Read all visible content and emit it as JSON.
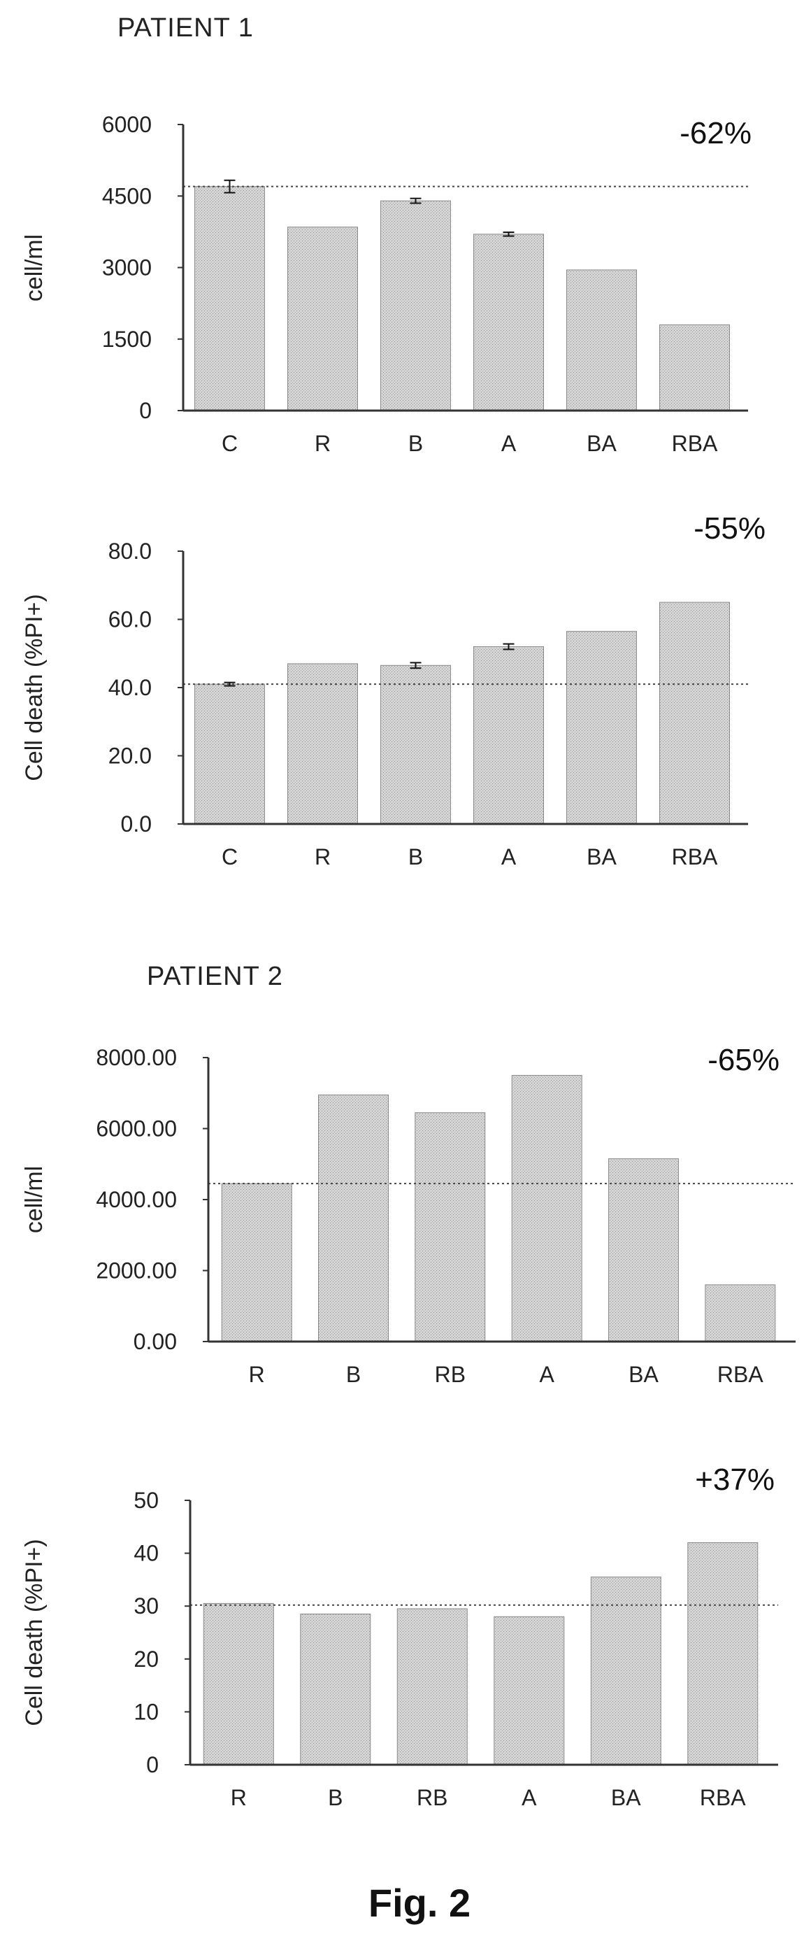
{
  "patient1_label": "PATIENT 1",
  "patient2_label": "PATIENT 2",
  "caption": "Fig. 2",
  "colors": {
    "bar_fill": "#cfcfcf",
    "bar_stroke": "#8a8a8a",
    "axis": "#333333",
    "reference_line": "#444444"
  },
  "chart_data": [
    {
      "type": "bar",
      "group": "PATIENT 1",
      "ylabel": "cell/ml",
      "categories": [
        "C",
        "R",
        "B",
        "A",
        "BA",
        "RBA"
      ],
      "values": [
        4700,
        3850,
        4400,
        3700,
        2950,
        1800
      ],
      "error_bars": [
        130,
        null,
        50,
        40,
        null,
        null
      ],
      "ylim": [
        0,
        6000
      ],
      "yticks": [
        "0",
        "1500",
        "3000",
        "4500",
        "6000"
      ],
      "reference_line": 4700,
      "annotation": "-62%"
    },
    {
      "type": "bar",
      "group": "PATIENT 1",
      "ylabel": "Cell death (%PI+)",
      "categories": [
        "C",
        "R",
        "B",
        "A",
        "BA",
        "RBA"
      ],
      "values": [
        41,
        47,
        46.5,
        52,
        56.5,
        65
      ],
      "error_bars": [
        0.5,
        null,
        0.8,
        0.8,
        null,
        null
      ],
      "ylim": [
        0,
        80
      ],
      "yticks": [
        "0.0",
        "20.0",
        "40.0",
        "60.0",
        "80.0"
      ],
      "reference_line": 41,
      "annotation": "-55%"
    },
    {
      "type": "bar",
      "group": "PATIENT 2",
      "ylabel": "cell/ml",
      "categories": [
        "R",
        "B",
        "RB",
        "A",
        "BA",
        "RBA"
      ],
      "values": [
        4450,
        6950,
        6450,
        7500,
        5150,
        1600
      ],
      "error_bars": [
        null,
        null,
        null,
        null,
        null,
        null
      ],
      "ylim": [
        0,
        8000
      ],
      "yticks": [
        "0.00",
        "2000.00",
        "4000.00",
        "6000.00",
        "8000.00"
      ],
      "reference_line": 4450,
      "annotation": "-65%"
    },
    {
      "type": "bar",
      "group": "PATIENT 2",
      "ylabel": "Cell death (%PI+)",
      "categories": [
        "R",
        "B",
        "RB",
        "A",
        "BA",
        "RBA"
      ],
      "values": [
        30.5,
        28.5,
        29.5,
        28,
        35.5,
        42
      ],
      "error_bars": [
        null,
        null,
        null,
        null,
        null,
        null
      ],
      "ylim": [
        0,
        50
      ],
      "yticks": [
        "0",
        "10",
        "20",
        "30",
        "40",
        "50"
      ],
      "reference_line": 30.2,
      "annotation": "+37%"
    }
  ]
}
